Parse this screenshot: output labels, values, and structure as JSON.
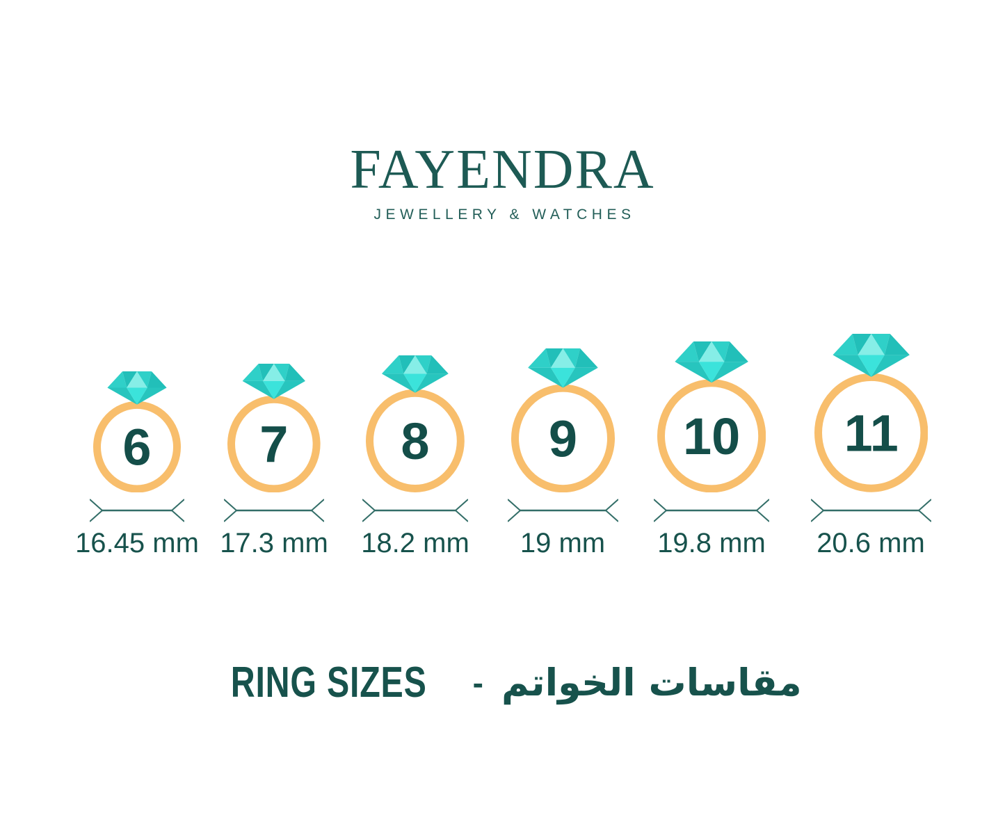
{
  "brand": {
    "name": "FAYENDRA",
    "tagline": "JEWELLERY & WATCHES"
  },
  "caption": {
    "en": "RING SIZES",
    "separator": "-",
    "ar": "مقاسات الخواتم"
  },
  "rings": [
    {
      "size": "6",
      "diameter_mm": 16.45,
      "diameter_label": "16.45 mm"
    },
    {
      "size": "7",
      "diameter_mm": 17.3,
      "diameter_label": "17.3 mm"
    },
    {
      "size": "8",
      "diameter_mm": 18.2,
      "diameter_label": "18.2 mm"
    },
    {
      "size": "9",
      "diameter_mm": 19,
      "diameter_label": "19 mm"
    },
    {
      "size": "10",
      "diameter_mm": 19.8,
      "diameter_label": "19.8 mm"
    },
    {
      "size": "11",
      "diameter_mm": 20.6,
      "diameter_label": "20.6 mm"
    }
  ],
  "colors": {
    "background": "#FFFFFF",
    "logo": "#1D5A54",
    "tagline": "#235E58",
    "text": "#17524C",
    "number": "#144E49",
    "band": "#F8BE6C",
    "line": "#336E68",
    "diamond_light": "#86EEE7",
    "diamond_medium": "#2FD0C8",
    "diamond_dark": "#22BFB9",
    "diamond_deep": "#27C5BE",
    "diamond_bright": "#3BE3DB"
  }
}
